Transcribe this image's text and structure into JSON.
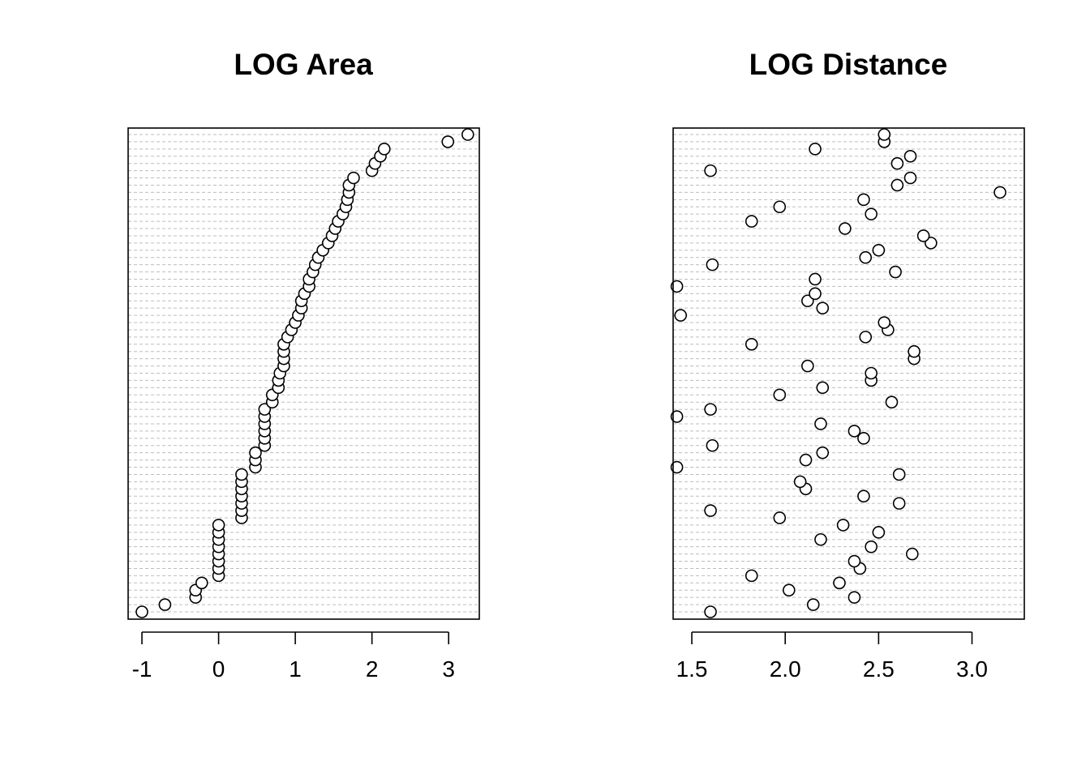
{
  "chart_data": [
    {
      "type": "scatter",
      "title": "LOG Area",
      "xlabel": "",
      "ylabel": "",
      "xlim": [
        -1.18,
        3.4
      ],
      "x_ticks": [
        -1,
        0,
        1,
        2,
        3
      ],
      "x_tick_labels": [
        "-1",
        "0",
        "1",
        "2",
        "3"
      ],
      "grid": "dotted horizontal lines, one per observation",
      "n_points": 67,
      "values": [
        -1.0,
        -0.7,
        -0.3,
        -0.3,
        -0.22,
        0.0,
        0.0,
        0.0,
        0.0,
        0.0,
        0.0,
        0.0,
        0.0,
        0.3,
        0.3,
        0.3,
        0.3,
        0.3,
        0.3,
        0.3,
        0.48,
        0.48,
        0.48,
        0.6,
        0.6,
        0.6,
        0.6,
        0.6,
        0.6,
        0.7,
        0.7,
        0.78,
        0.78,
        0.8,
        0.85,
        0.85,
        0.85,
        0.85,
        0.9,
        0.95,
        1.0,
        1.04,
        1.08,
        1.08,
        1.12,
        1.18,
        1.18,
        1.23,
        1.26,
        1.3,
        1.36,
        1.43,
        1.48,
        1.52,
        1.56,
        1.62,
        1.66,
        1.68,
        1.7,
        1.7,
        1.76,
        2.0,
        2.04,
        2.11,
        2.16,
        2.99,
        3.25
      ]
    },
    {
      "type": "scatter",
      "title": "LOG Distance",
      "xlabel": "",
      "ylabel": "",
      "xlim": [
        1.4,
        3.28
      ],
      "x_ticks": [
        1.5,
        2.0,
        2.5,
        3.0
      ],
      "x_tick_labels": [
        "1.5",
        "2.0",
        "2.5",
        "3.0"
      ],
      "grid": "dotted horizontal lines, one per observation",
      "n_points": 67,
      "values": [
        1.6,
        2.15,
        2.37,
        2.02,
        2.29,
        1.82,
        2.4,
        2.37,
        2.68,
        2.46,
        2.19,
        2.5,
        2.31,
        1.97,
        1.6,
        2.61,
        2.42,
        2.11,
        2.08,
        2.61,
        1.42,
        2.11,
        2.2,
        1.61,
        2.42,
        2.37,
        2.19,
        1.42,
        1.6,
        2.57,
        1.97,
        2.2,
        2.46,
        2.46,
        2.12,
        2.69,
        2.69,
        1.82,
        2.43,
        2.55,
        2.53,
        1.44,
        2.2,
        2.12,
        2.16,
        1.42,
        2.16,
        2.59,
        1.61,
        2.43,
        2.5,
        2.78,
        2.74,
        2.32,
        1.82,
        2.46,
        1.97,
        2.42,
        3.15,
        2.6,
        2.67,
        1.6,
        2.6,
        2.67,
        2.16,
        2.53,
        2.53
      ]
    }
  ]
}
